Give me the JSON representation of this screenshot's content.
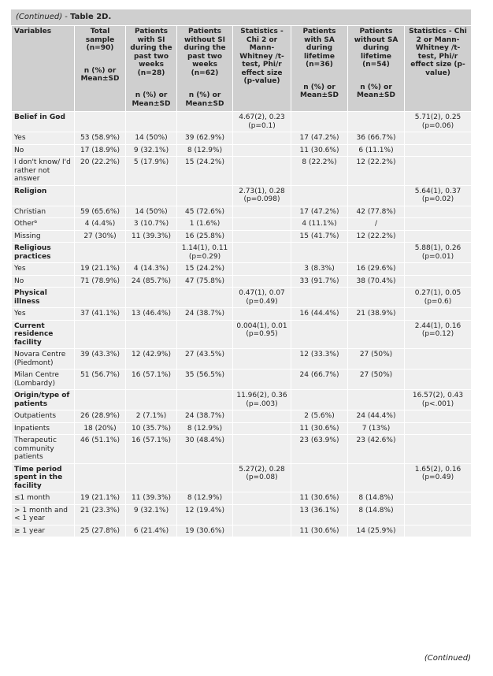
{
  "caption": {
    "continued": "(Continued)",
    "sep": " - ",
    "title": "Table 2D."
  },
  "columns": [
    {
      "head": "Variables",
      "sub": ""
    },
    {
      "head": "Total sample (n=90)",
      "sub": "n (%) or Mean±SD"
    },
    {
      "head": "Patients with SI during the past two weeks (n=28)",
      "sub": "n (%) or Mean±SD"
    },
    {
      "head": "Patients without SI during the past two weeks (n=62)",
      "sub": "n (%) or Mean±SD"
    },
    {
      "head": "Statistics - Chi 2 or Mann-Whitney /t-test, Phi/r effect size (p-value)",
      "sub": ""
    },
    {
      "head": "Patients with SA during lifetime (n=36)",
      "sub": "n (%) or Mean±SD"
    },
    {
      "head": "Patients without SA during lifetime (n=54)",
      "sub": "n (%) or Mean±SD"
    },
    {
      "head": "Statistics - Chi 2 or Mann-Whitney /t-test, Phi/r effect size (p-value)",
      "sub": ""
    }
  ],
  "rows": [
    {
      "type": "sec",
      "cells": [
        "Belief in God",
        "",
        "",
        "",
        "4.67(2), 0.23 (p=0.1)",
        "",
        "",
        "5.71(2), 0.25 (p=0.06)"
      ]
    },
    {
      "type": "row",
      "cells": [
        "Yes",
        "53 (58.9%)",
        "14 (50%)",
        "39 (62.9%)",
        "",
        "17 (47.2%)",
        "36 (66.7%)",
        ""
      ]
    },
    {
      "type": "row",
      "cells": [
        "No",
        "17 (18.9%)",
        "9 (32.1%)",
        "8 (12.9%)",
        "",
        "11 (30.6%)",
        "6 (11.1%)",
        ""
      ]
    },
    {
      "type": "row",
      "cells": [
        "I don't know/ I'd rather not answer",
        "20 (22.2%)",
        "5 (17.9%)",
        "15 (24.2%)",
        "",
        "8 (22.2%)",
        "12 (22.2%)",
        ""
      ]
    },
    {
      "type": "sec",
      "cells": [
        "Religion",
        "",
        "",
        "",
        "2.73(1), 0.28 (p=0.098)",
        "",
        "",
        "5.64(1), 0.37 (p=0.02)"
      ]
    },
    {
      "type": "row",
      "cells": [
        "Christian",
        "59 (65.6%)",
        "14 (50%)",
        "45 (72.6%)",
        "",
        "17 (47.2%)",
        "42 (77.8%)",
        ""
      ]
    },
    {
      "type": "row",
      "cells": [
        "Otherᵇ",
        "4 (4.4%)",
        "3 (10.7%)",
        "1 (1.6%)",
        "",
        "4 (11.1%)",
        "/",
        ""
      ]
    },
    {
      "type": "row",
      "cells": [
        "Missing",
        "27 (30%)",
        "11 (39.3%)",
        "16 (25.8%)",
        "",
        "15 (41.7%)",
        "12 (22.2%)",
        ""
      ]
    },
    {
      "type": "sec",
      "cells": [
        "Religious practices",
        "",
        "",
        "1.14(1), 0.11 (p=0.29)",
        "",
        "",
        "",
        "5.88(1), 0.26 (p=0.01)"
      ]
    },
    {
      "type": "row",
      "cells": [
        "Yes",
        "19 (21.1%)",
        "4 (14.3%)",
        "15 (24.2%)",
        "",
        "3 (8.3%)",
        "16 (29.6%)",
        ""
      ]
    },
    {
      "type": "row",
      "cells": [
        "No",
        "71 (78.9%)",
        "24 (85.7%)",
        "47 (75.8%)",
        "",
        "33 (91.7%)",
        "38 (70.4%)",
        ""
      ]
    },
    {
      "type": "sec",
      "cells": [
        "Physical illness",
        "",
        "",
        "",
        "0.47(1), 0.07 (p=0.49)",
        "",
        "",
        "0.27(1), 0.05 (p=0.6)"
      ]
    },
    {
      "type": "row",
      "cells": [
        "Yes",
        "37 (41.1%)",
        "13 (46.4%)",
        "24 (38.7%)",
        "",
        "16 (44.4%)",
        "21 (38.9%)",
        ""
      ]
    },
    {
      "type": "sec",
      "cells": [
        "Current residence facility",
        "",
        "",
        "",
        "0.004(1), 0.01 (p=0.95)",
        "",
        "",
        "2.44(1), 0.16 (p=0.12)"
      ]
    },
    {
      "type": "row",
      "cells": [
        "Novara Centre (Piedmont)",
        "39 (43.3%)",
        "12 (42.9%)",
        "27 (43.5%)",
        "",
        "12 (33.3%)",
        "27 (50%)",
        ""
      ]
    },
    {
      "type": "row",
      "cells": [
        "Milan Centre (Lombardy)",
        "51 (56.7%)",
        "16 (57.1%)",
        "35 (56.5%)",
        "",
        "24 (66.7%)",
        "27 (50%)",
        ""
      ]
    },
    {
      "type": "sec",
      "cells": [
        "Origin/type of patients",
        "",
        "",
        "",
        "11.96(2), 0.36 (p=.003)",
        "",
        "",
        "16.57(2), 0.43 (p<.001)"
      ]
    },
    {
      "type": "row",
      "cells": [
        "Outpatients",
        "26 (28.9%)",
        "2 (7.1%)",
        "24 (38.7%)",
        "",
        "2 (5.6%)",
        "24 (44.4%)",
        ""
      ]
    },
    {
      "type": "row",
      "cells": [
        "Inpatients",
        "18 (20%)",
        "10 (35.7%)",
        "8 (12.9%)",
        "",
        "11 (30.6%)",
        "7 (13%)",
        ""
      ]
    },
    {
      "type": "row",
      "cells": [
        "Therapeutic community patients",
        "46 (51.1%)",
        "16 (57.1%)",
        "30 (48.4%)",
        "",
        "23 (63.9%)",
        "23 (42.6%)",
        ""
      ]
    },
    {
      "type": "sec",
      "cells": [
        "Time period spent in the facility",
        "",
        "",
        "",
        "5.27(2), 0.28 (p=0.08)",
        "",
        "",
        "1.65(2), 0.16 (p=0.49)"
      ]
    },
    {
      "type": "row",
      "cells": [
        "≤1 month",
        "19 (21.1%)",
        "11 (39.3%)",
        "8 (12.9%)",
        "",
        "11 (30.6%)",
        "8 (14.8%)",
        ""
      ]
    },
    {
      "type": "row",
      "cells": [
        "> 1 month and < 1 year",
        "21 (23.3%)",
        "9 (32.1%)",
        "12 (19.4%)",
        "",
        "13 (36.1%)",
        "8 (14.8%)",
        ""
      ]
    },
    {
      "type": "row",
      "cells": [
        "≥ 1 year",
        "25 (27.8%)",
        "6 (21.4%)",
        "19 (30.6%)",
        "",
        "11 (30.6%)",
        "14 (25.9%)",
        ""
      ]
    }
  ],
  "footer": "(Continued)"
}
